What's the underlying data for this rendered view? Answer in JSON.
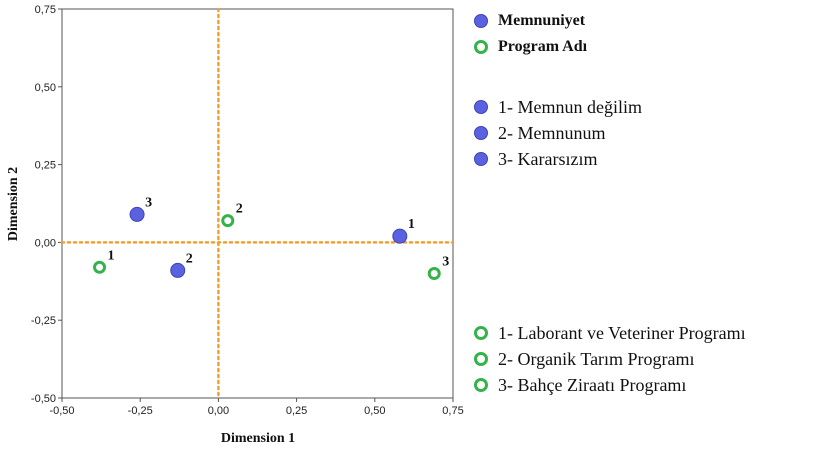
{
  "chart_data": {
    "type": "scatter",
    "xlabel": "Dimension 1",
    "ylabel": "Dimension 2",
    "xlim": [
      -0.5,
      0.75
    ],
    "ylim": [
      -0.5,
      0.75
    ],
    "x_ticks": [
      "-0,50",
      "-0,25",
      "0,00",
      "0,25",
      "0,50",
      "0,75"
    ],
    "y_ticks": [
      "-0,50",
      "-0,25",
      "0,00",
      "0,25",
      "0,50",
      "0,75"
    ],
    "reference_lines": {
      "x": 0,
      "y": 0,
      "color": "#f0a030",
      "style": "dotted"
    },
    "series": [
      {
        "name": "Memnuniyet",
        "marker": "filled-circle",
        "color": "#5b62e0",
        "points": [
          {
            "label": "1",
            "x": 0.58,
            "y": 0.02
          },
          {
            "label": "2",
            "x": -0.13,
            "y": -0.09
          },
          {
            "label": "3",
            "x": -0.26,
            "y": 0.09
          }
        ]
      },
      {
        "name": "Program Adı",
        "marker": "hollow-circle",
        "color": "#33b34a",
        "points": [
          {
            "label": "1",
            "x": -0.38,
            "y": -0.08
          },
          {
            "label": "2",
            "x": 0.03,
            "y": 0.07
          },
          {
            "label": "3",
            "x": 0.69,
            "y": -0.1
          }
        ]
      }
    ]
  },
  "legend": {
    "headers": [
      "Memnuniyet",
      "Program Adı"
    ],
    "memnuniyet_items": [
      "1- Memnun değilim",
      "2- Memnunum",
      "3- Kararsızım"
    ],
    "program_items": [
      "1- Laborant ve Veteriner Programı",
      "2- Organik Tarım Programı",
      "3- Bahçe Ziraatı Programı"
    ]
  }
}
